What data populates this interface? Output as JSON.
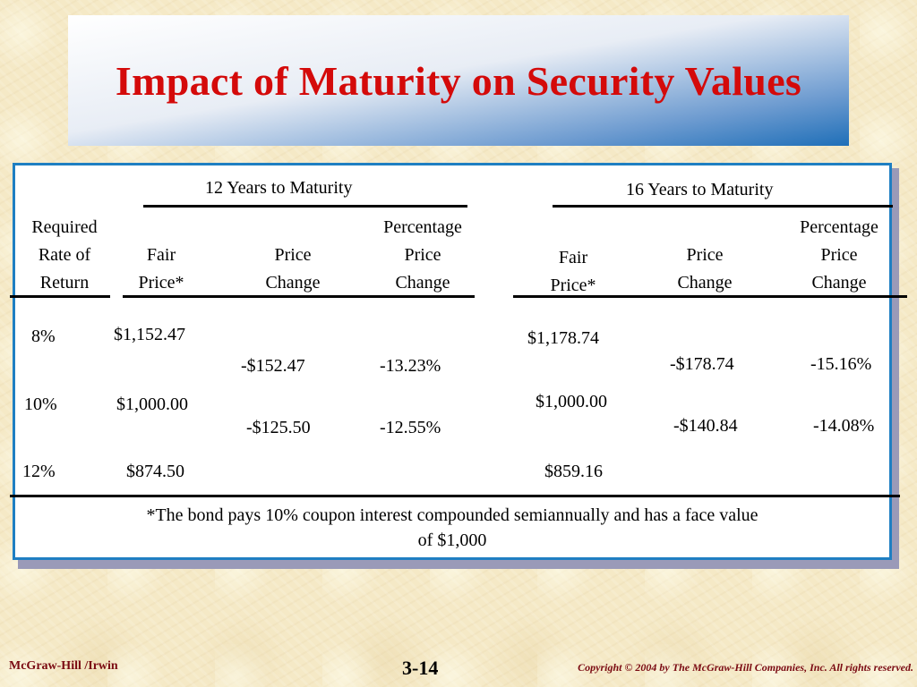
{
  "title": "Impact of Maturity on Security Values",
  "table": {
    "group_12": "12 Years to Maturity",
    "group_16": "16 Years to Maturity",
    "col_rate": [
      "Required",
      "Rate of",
      "Return"
    ],
    "col_fair_12": [
      "Fair",
      "Price*"
    ],
    "col_change_12": [
      "Price",
      "Change"
    ],
    "col_pct_12": [
      "Percentage",
      "Price",
      "Change"
    ],
    "col_fair_16": [
      "Fair",
      "Price*"
    ],
    "col_change_16": [
      "Price",
      "Change"
    ],
    "col_pct_16": [
      "Percentage",
      "Price",
      "Change"
    ],
    "rows": [
      {
        "rate": "8%",
        "fair_12": "$1,152.47",
        "fair_16": "$1,178.74"
      },
      {
        "rate": "10%",
        "fair_12": "$1,000.00",
        "fair_16": "$1,000.00"
      },
      {
        "rate": "12%",
        "fair_12": "$874.50",
        "fair_16": "$859.16"
      }
    ],
    "changes": [
      {
        "change_12": "-$152.47",
        "pct_12": "-13.23%",
        "change_16": "-$178.74",
        "pct_16": "-15.16%"
      },
      {
        "change_12": "-$125.50",
        "pct_12": "-12.55%",
        "change_16": "-$140.84",
        "pct_16": "-14.08%"
      }
    ],
    "footnote": [
      "*The bond pays 10% coupon interest compounded semiannually and has a face value",
      "of $1,000"
    ]
  },
  "footer": {
    "publisher": "McGraw-Hill /Irwin",
    "page": "3-14",
    "copyright": "Copyright © 2004 by The McGraw-Hill Companies, Inc.  All rights reserved."
  }
}
